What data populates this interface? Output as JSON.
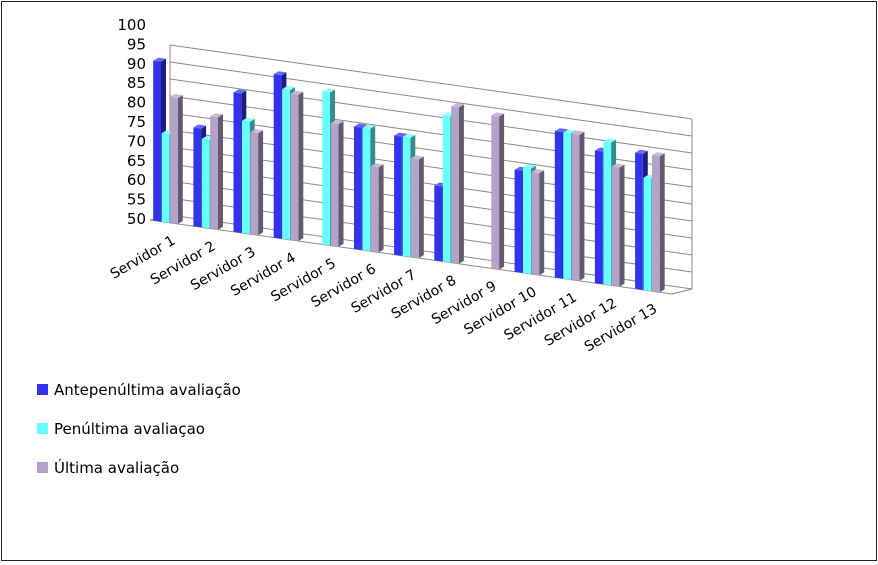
{
  "chart_data": {
    "type": "bar",
    "three_d": true,
    "grid": true,
    "legend_position": "bottom-left",
    "ylim": [
      50,
      100
    ],
    "yticks": [
      "50",
      "55",
      "60",
      "65",
      "70",
      "75",
      "80",
      "85",
      "90",
      "95",
      "100"
    ],
    "categories": [
      "Servidor 1",
      "Servidor 2",
      "Servidor 3",
      "Servidor 4",
      "Servidor 5",
      "Servidor 6",
      "Servidor 7",
      "Servidor 8",
      "Servidor 9",
      "Servidor 10",
      "Servidor 11",
      "Servidor 12",
      "Servidor 13"
    ],
    "series": [
      {
        "name": "Antepenúltima avaliação",
        "color": "#3333ee",
        "values": [
          97,
          79,
          91,
          98,
          null,
          86,
          85,
          72,
          null,
          80,
          93,
          89,
          90
        ]
      },
      {
        "name": "Penúltima avaliaçao",
        "color": "#66ffff",
        "values": [
          76,
          76,
          83,
          94,
          95,
          86,
          85,
          93,
          null,
          81,
          93,
          92,
          83
        ]
      },
      {
        "name": "Última avaliação",
        "color": "#b3a3c9",
        "values": [
          87,
          83,
          80,
          93,
          86,
          75,
          79,
          96,
          95,
          80,
          93,
          85,
          90
        ]
      }
    ]
  }
}
